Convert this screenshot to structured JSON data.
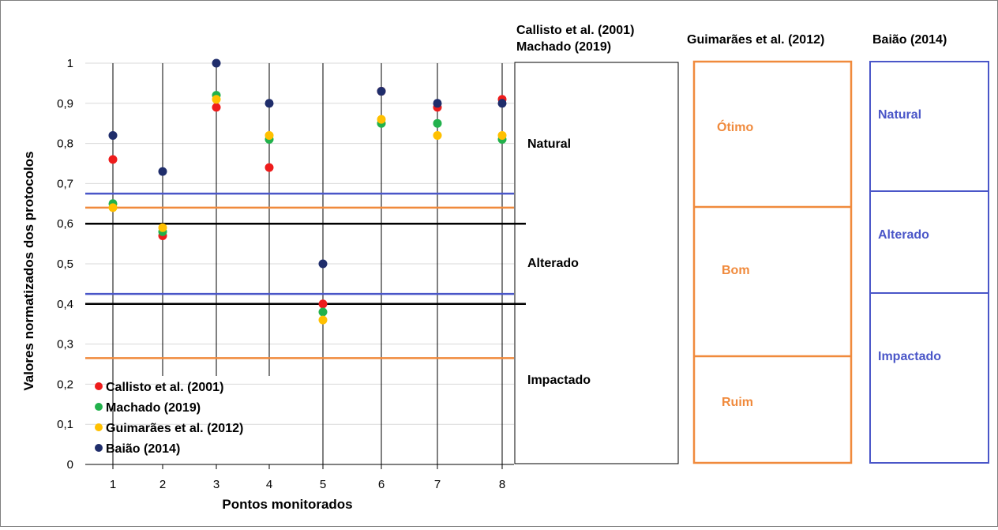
{
  "chart_data": {
    "type": "scatter",
    "xlabel": "Pontos monitorados",
    "ylabel": "Valores normatizados dos protocolos",
    "x": [
      1,
      2,
      3,
      4,
      5,
      6,
      7,
      8
    ],
    "xlim": [
      1,
      8
    ],
    "ylim": [
      0,
      1
    ],
    "y_ticks": [
      "0",
      "0,1",
      "0,2",
      "0,3",
      "0,4",
      "0,5",
      "0,6",
      "0,7",
      "0,8",
      "0,9",
      "1"
    ],
    "x_ticks": [
      "1",
      "2",
      "3",
      "4",
      "5",
      "6",
      "7",
      "8"
    ],
    "grid": true,
    "legend_position": "bottom-left",
    "series": [
      {
        "name": "Callisto et al. (2001)",
        "color": "#ee1c1c",
        "values": [
          0.76,
          0.57,
          0.89,
          0.74,
          0.4,
          0.93,
          0.89,
          0.91
        ]
      },
      {
        "name": "Machado (2019)",
        "color": "#22b14c",
        "values": [
          0.65,
          0.58,
          0.92,
          0.81,
          0.38,
          0.85,
          0.85,
          0.81
        ]
      },
      {
        "name": "Guimarães et al. (2012)",
        "color": "#ffc000",
        "values": [
          0.64,
          0.59,
          0.91,
          0.82,
          0.36,
          0.86,
          0.82,
          0.82
        ]
      },
      {
        "name": "Baião (2014)",
        "color": "#1f2d6b",
        "values": [
          0.82,
          0.73,
          1.0,
          0.9,
          0.5,
          0.93,
          0.9,
          0.9
        ]
      }
    ],
    "threshold_lines": [
      {
        "protocol": "Baião (2014)",
        "value": 0.675,
        "color": "#4a56c8"
      },
      {
        "protocol": "Guimarães et al. (2012)",
        "value": 0.64,
        "color": "#f08a3c"
      },
      {
        "protocol": "Callisto et al. (2001) / Machado (2019)",
        "value": 0.6,
        "color": "#000000"
      },
      {
        "protocol": "Baião (2014)",
        "value": 0.425,
        "color": "#4a56c8"
      },
      {
        "protocol": "Callisto et al. (2001) / Machado (2019)",
        "value": 0.4,
        "color": "#000000"
      },
      {
        "protocol": "Guimarães et al. (2012)",
        "value": 0.265,
        "color": "#f08a3c"
      }
    ]
  },
  "classification": {
    "callisto_machado": {
      "title_line1": "Callisto et al. (2001)",
      "title_line2": "Machado (2019)",
      "color": "#000000",
      "zones": [
        {
          "label": "Natural",
          "min": 0.6,
          "max": 1.0
        },
        {
          "label": "Alterado",
          "min": 0.4,
          "max": 0.6
        },
        {
          "label": "Impactado",
          "min": 0.0,
          "max": 0.4
        }
      ]
    },
    "guimaraes": {
      "title": "Guimarães et al. (2012)",
      "color": "#f08a3c",
      "zones": [
        {
          "label": "Ótimo",
          "min": 0.64,
          "max": 1.0
        },
        {
          "label": "Bom",
          "min": 0.265,
          "max": 0.64
        },
        {
          "label": "Ruim",
          "min": 0.0,
          "max": 0.265
        }
      ]
    },
    "baiao": {
      "title": "Baião (2014)",
      "color": "#4a56c8",
      "zones": [
        {
          "label": "Natural",
          "min": 0.675,
          "max": 1.0
        },
        {
          "label": "Alterado",
          "min": 0.425,
          "max": 0.675
        },
        {
          "label": "Impactado",
          "min": 0.0,
          "max": 0.425
        }
      ]
    }
  }
}
